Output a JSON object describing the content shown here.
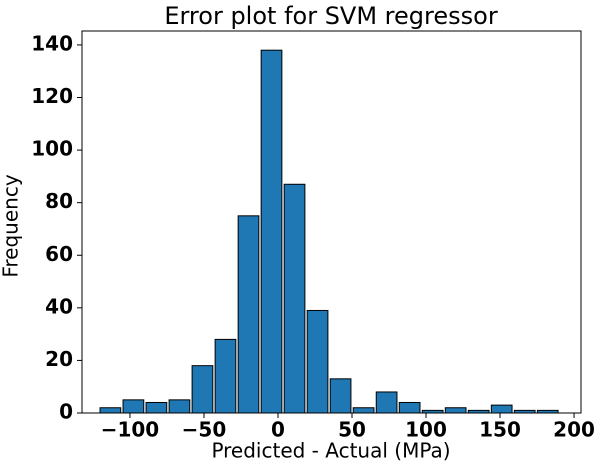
{
  "chart_data": {
    "type": "histogram",
    "title": "Error plot for SVM regressor",
    "x_label": "Predicted - Actual (MPa)",
    "y_label": "Frequency",
    "bins": [
      -121.0,
      -105.45,
      -89.9,
      -74.35,
      -58.8,
      -43.25,
      -27.7,
      -12.15,
      3.4,
      18.95,
      34.5,
      50.05,
      65.6,
      81.15,
      96.7,
      112.25,
      127.8,
      143.35,
      158.9,
      174.45,
      190.0
    ],
    "counts": [
      2,
      5,
      4,
      5,
      18,
      28,
      75,
      138,
      87,
      39,
      13,
      2,
      8,
      4,
      1,
      2,
      1,
      3,
      1,
      1
    ],
    "color": "#1f77b4",
    "edgecolor": "#000000",
    "xlim": [
      -132.4,
      204.7
    ],
    "ylim": [
      0,
      145.3
    ],
    "xticks": [
      {
        "value": -100,
        "label": "−100"
      },
      {
        "value": -50,
        "label": "−50"
      },
      0,
      50,
      100,
      150,
      200
    ],
    "yticks": [
      0,
      20,
      40,
      60,
      80,
      100,
      120,
      140
    ]
  }
}
